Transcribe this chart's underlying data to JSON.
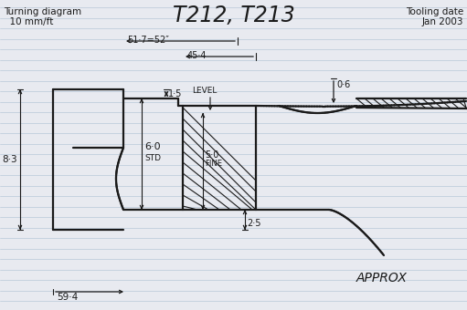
{
  "title": "T212, T213",
  "top_left_line1": "Turning diagram",
  "top_left_line2": "  10 mm/ft",
  "top_right_line1": "Tooling date",
  "top_right_line2": "Jan 2003",
  "bottom_right": "APPROX",
  "dim_51_7": "51·7=52″",
  "dim_45_4": "45·4",
  "dim_0_6": "0·6",
  "dim_8_3": "8·3",
  "dim_1_5": "1·5",
  "dim_6_0": "6·0",
  "dim_std": "STD",
  "dim_5_0": "5·0",
  "dim_fine": "FINE",
  "dim_2_5": "2·5",
  "dim_level": "LEVEL",
  "dim_59_4": "59·4",
  "bg_color": "#e8eaf0",
  "line_color": "#1a1a1a",
  "ruled_color": "#b8c8d8"
}
